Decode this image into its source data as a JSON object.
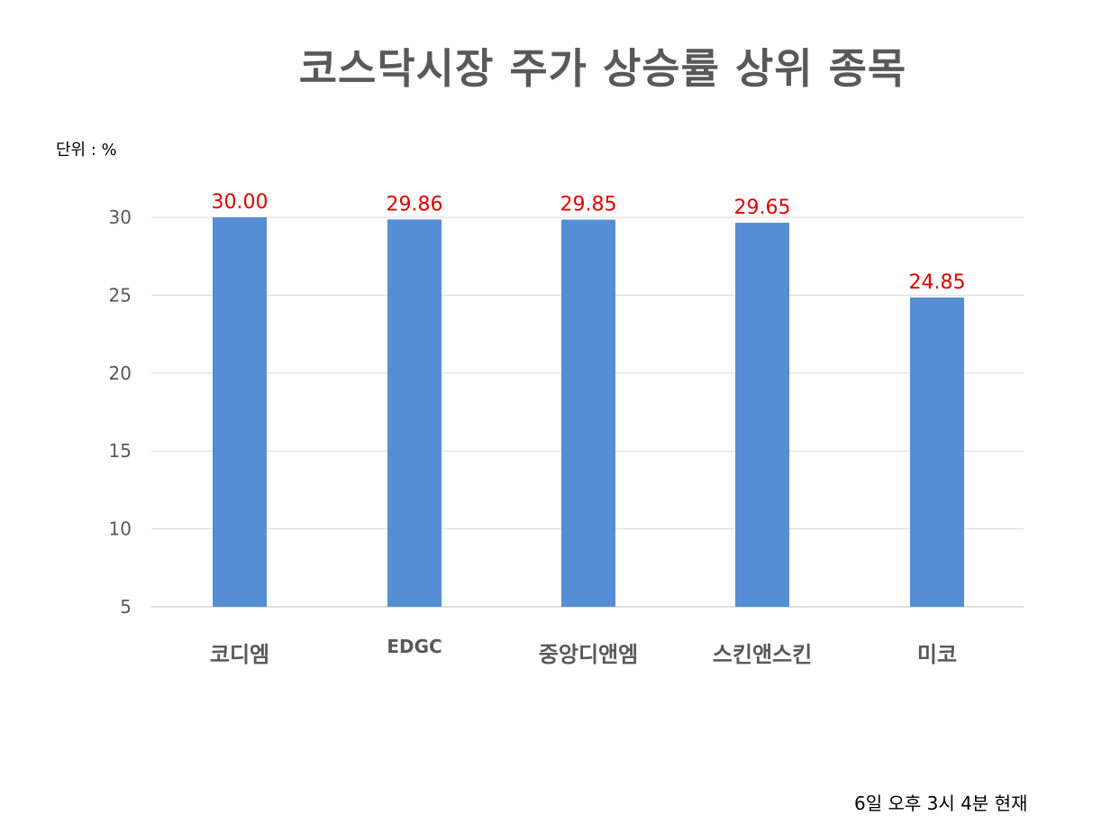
{
  "unit_label": "단위 : %",
  "footnote": "6일  오후  3시 4분 현재",
  "chart_data": {
    "type": "bar",
    "title": "코스닥시장 주가 상승률 상위 종목",
    "categories": [
      "코디엠",
      "EDGC",
      "중앙디앤엠",
      "스킨앤스킨",
      "미코"
    ],
    "values": [
      30.0,
      29.86,
      29.85,
      29.65,
      24.85
    ],
    "value_labels": [
      "30.00",
      "29.86",
      "29.85",
      "29.65",
      "24.85"
    ],
    "yticks": [
      5,
      10,
      15,
      20,
      25,
      30
    ],
    "ylim": [
      5,
      30
    ],
    "grid": true,
    "legend": "none",
    "bar_color": "#558ed5",
    "value_label_color": "#e00000",
    "gridline_color": "#d9d9d9"
  }
}
